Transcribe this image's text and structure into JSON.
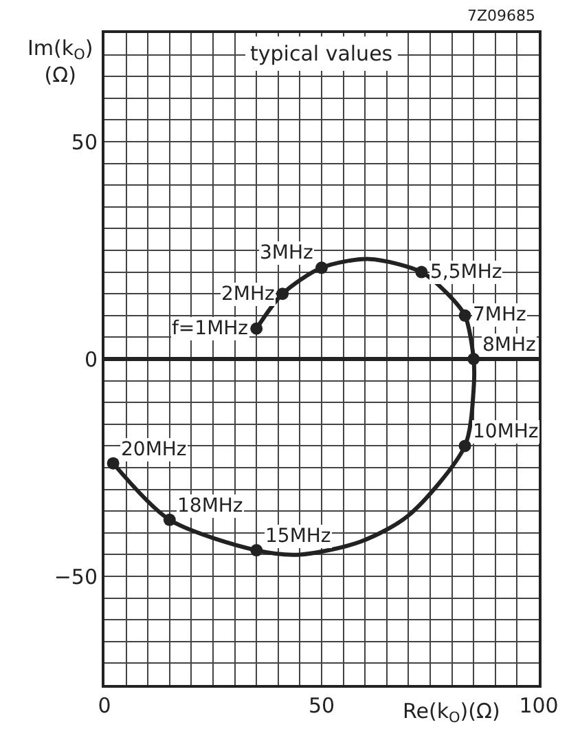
{
  "chart_data": {
    "type": "line",
    "xlabel": "Re(k$_{O}$)(Ω)",
    "ylabel": "Im(k$_{O}$)\n(Ω)",
    "xlim": [
      0,
      100
    ],
    "ylim": [
      -75,
      75
    ],
    "xticks": [
      0,
      {
        "value": 5,
        "label": null
      },
      {
        "value": 10,
        "label": null
      },
      {
        "value": 15,
        "label": null
      },
      {
        "value": 20,
        "label": null
      },
      {
        "value": 25,
        "label": null
      },
      {
        "value": 30,
        "label": null
      },
      {
        "value": 35,
        "label": null
      },
      {
        "value": 40,
        "label": null
      },
      {
        "value": 45,
        "label": null
      },
      50,
      {
        "value": 55,
        "label": null
      },
      {
        "value": 60,
        "label": null
      },
      {
        "value": 65,
        "label": null
      },
      {
        "value": 70,
        "label": null
      },
      {
        "value": 75,
        "label": null
      },
      {
        "value": 80,
        "label": null
      },
      {
        "value": 85,
        "label": null
      },
      {
        "value": 90,
        "label": null
      },
      {
        "value": 95,
        "label": null
      },
      100
    ],
    "yticks": [
      {
        "value": -75,
        "label": null
      },
      {
        "value": -70,
        "label": null
      },
      {
        "value": -65,
        "label": null
      },
      {
        "value": -60,
        "label": null
      },
      {
        "value": -55,
        "label": null
      },
      -50,
      {
        "value": -45,
        "label": null
      },
      {
        "value": -40,
        "label": null
      },
      {
        "value": -35,
        "label": null
      },
      {
        "value": -30,
        "label": null
      },
      {
        "value": -25,
        "label": null
      },
      {
        "value": -20,
        "label": null
      },
      {
        "value": -15,
        "label": null
      },
      {
        "value": -10,
        "label": null
      },
      {
        "value": -5,
        "label": null
      },
      0,
      {
        "value": 5,
        "label": null
      },
      {
        "value": 10,
        "label": null
      },
      {
        "value": 15,
        "label": null
      },
      {
        "value": 20,
        "label": null
      },
      {
        "value": 25,
        "label": null
      },
      {
        "value": 30,
        "label": null
      },
      {
        "value": 35,
        "label": null
      },
      {
        "value": 40,
        "label": null
      },
      {
        "value": 45,
        "label": null
      },
      50,
      {
        "value": 55,
        "label": null
      },
      {
        "value": 60,
        "label": null
      },
      {
        "value": 65,
        "label": null
      },
      {
        "value": 70,
        "label": null
      },
      {
        "value": 75,
        "label": null
      }
    ],
    "grid": true,
    "series": [
      {
        "marker": "none",
        "color": "#222222",
        "x": [
          35,
          41,
          50,
          61,
          73,
          79,
          83,
          85,
          85,
          83,
          70,
          59,
          45,
          35,
          15,
          2
        ],
        "values": [
          7,
          15,
          21,
          23,
          20,
          15,
          10,
          0,
          -7,
          -20,
          -36,
          -42,
          -45,
          -44,
          -37,
          -24
        ]
      },
      {
        "type": "scatter",
        "marker": "circle",
        "color": "#222222",
        "x": [
          35,
          41,
          50,
          73,
          83,
          85,
          83,
          35,
          15,
          2
        ],
        "values": [
          7,
          15,
          21,
          20,
          10,
          0,
          -20,
          -44,
          -37,
          -24
        ]
      }
    ],
    "annotations": [
      "7Z09685",
      "typical values",
      {
        "text": "f=1MHz",
        "x": 35,
        "y": 7
      },
      {
        "text": "2MHz",
        "x": 41,
        "y": 15
      },
      {
        "text": "3MHz",
        "x": 50,
        "y": 21
      },
      {
        "text": "5,5MHz",
        "x": 73,
        "y": 20
      },
      {
        "text": "7MHz",
        "x": 83,
        "y": 10
      },
      {
        "text": "8MHz",
        "x": 85,
        "y": 0
      },
      {
        "text": "10MHz",
        "x": 83,
        "y": -20
      },
      {
        "text": "15MHz",
        "x": 35,
        "y": -44
      },
      {
        "text": "18MHz",
        "x": 15,
        "y": -37
      },
      {
        "text": "20MHz",
        "x": 2,
        "y": -24
      }
    ]
  }
}
